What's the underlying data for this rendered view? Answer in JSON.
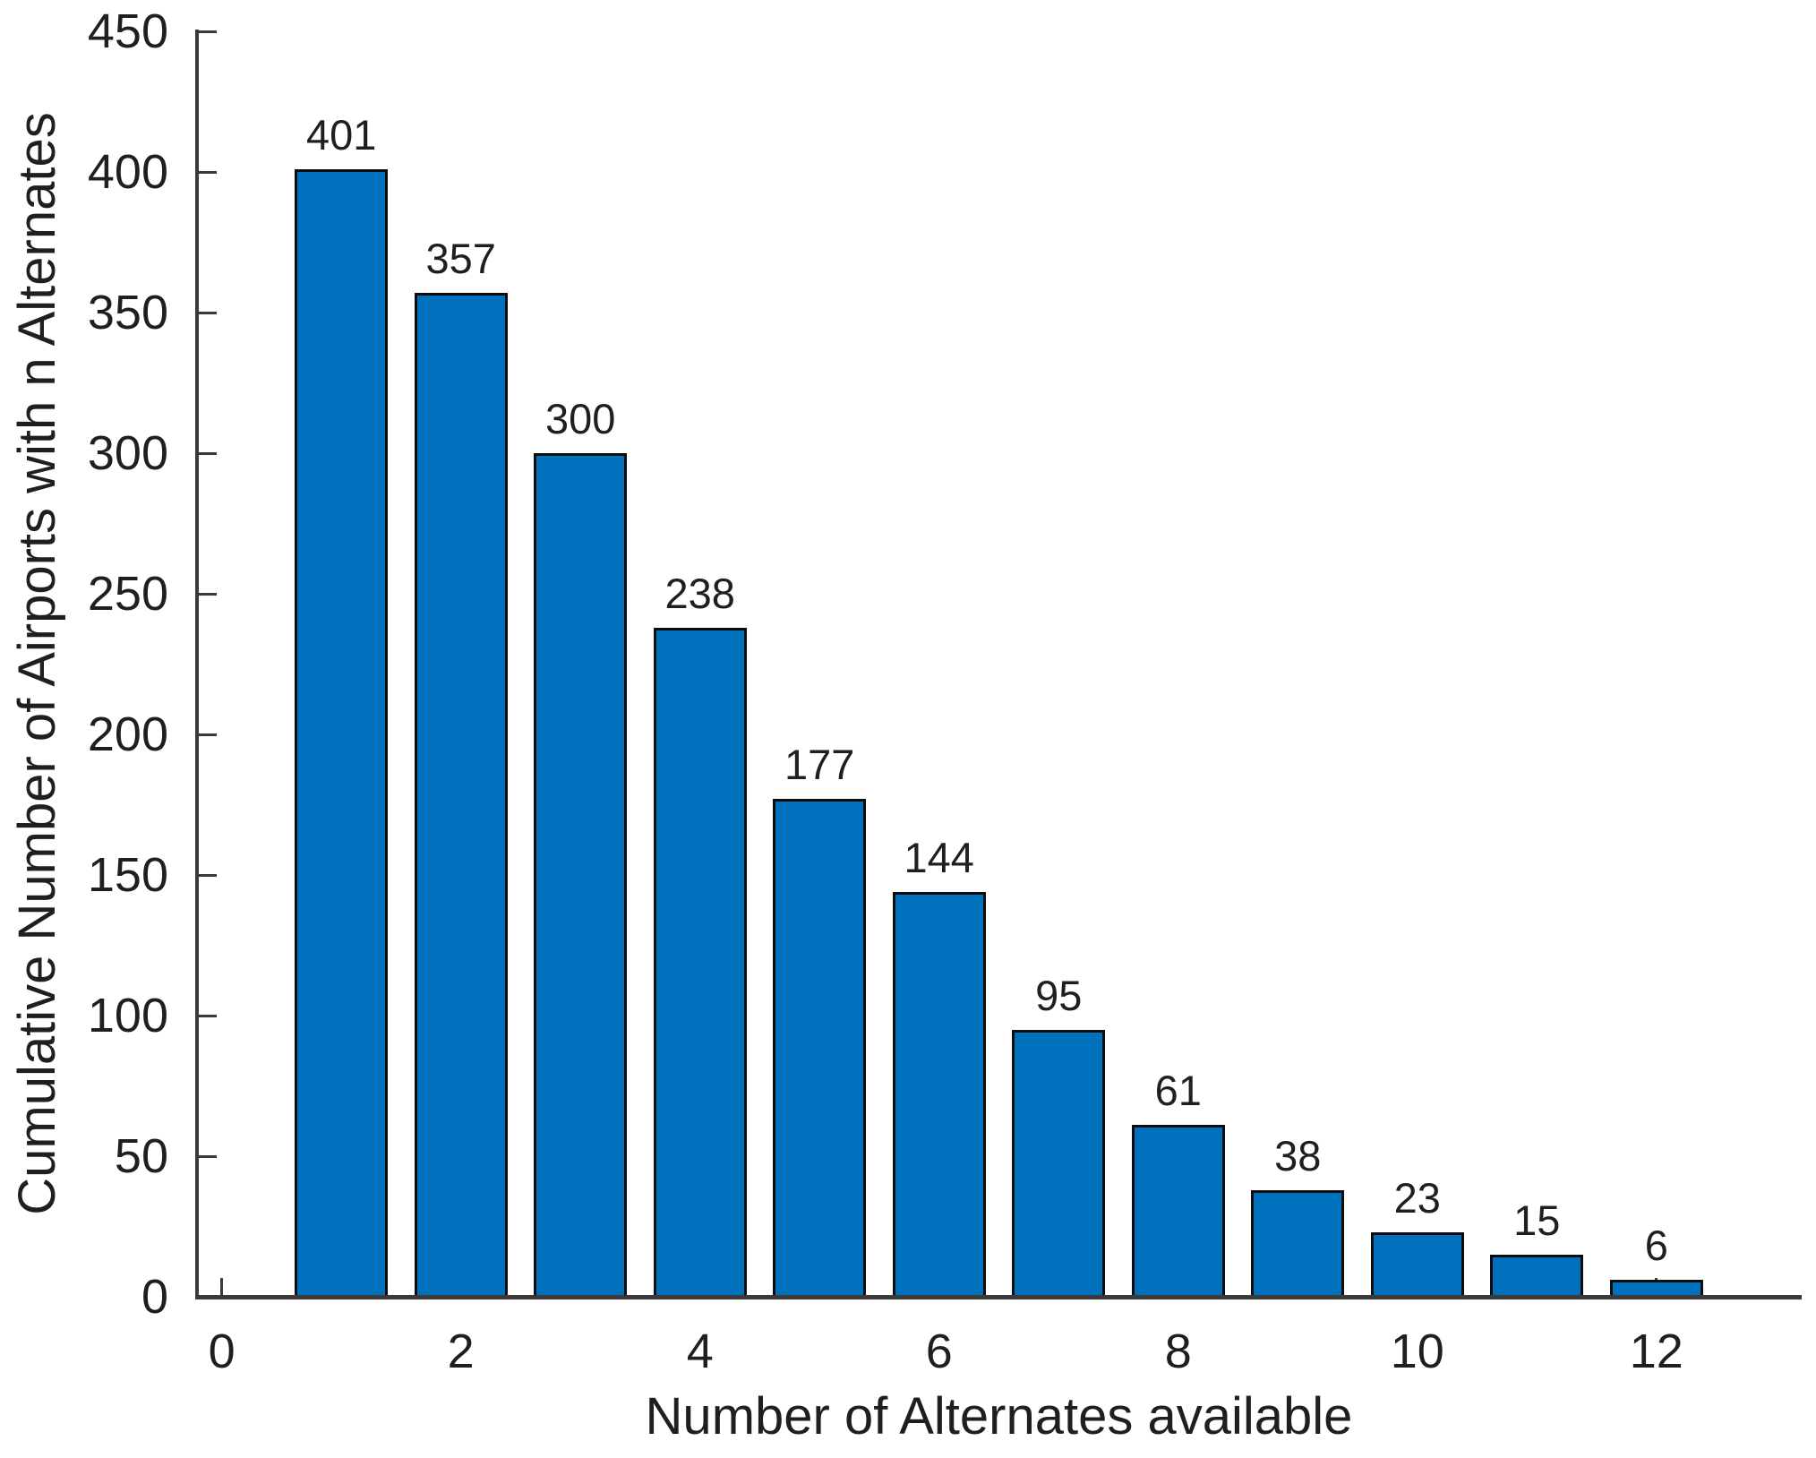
{
  "chart_data": {
    "type": "bar",
    "title": "",
    "xlabel": "Number of Alternates available",
    "ylabel": "Cumulative Number of Airports with n Alternates",
    "categories": [
      1,
      2,
      3,
      4,
      5,
      6,
      7,
      8,
      9,
      10,
      11,
      12
    ],
    "values": [
      401,
      357,
      300,
      238,
      177,
      144,
      95,
      61,
      38,
      23,
      15,
      6
    ],
    "value_labels_shown": true,
    "x_ticks": [
      0,
      2,
      4,
      6,
      8,
      10,
      12
    ],
    "y_ticks": [
      0,
      50,
      100,
      150,
      200,
      250,
      300,
      350,
      400,
      450
    ],
    "xlim": [
      -0.2,
      13.2
    ],
    "ylim": [
      0,
      450
    ],
    "bar_width_units": 0.78,
    "grid": false,
    "legend": null,
    "tick_direction": "in",
    "colors": {
      "bar_fill": "#0072BD",
      "bar_edge": "#0d0d0d",
      "axis": "#3a3a3a",
      "text": "#1f1f1f",
      "background": "#ffffff"
    }
  }
}
